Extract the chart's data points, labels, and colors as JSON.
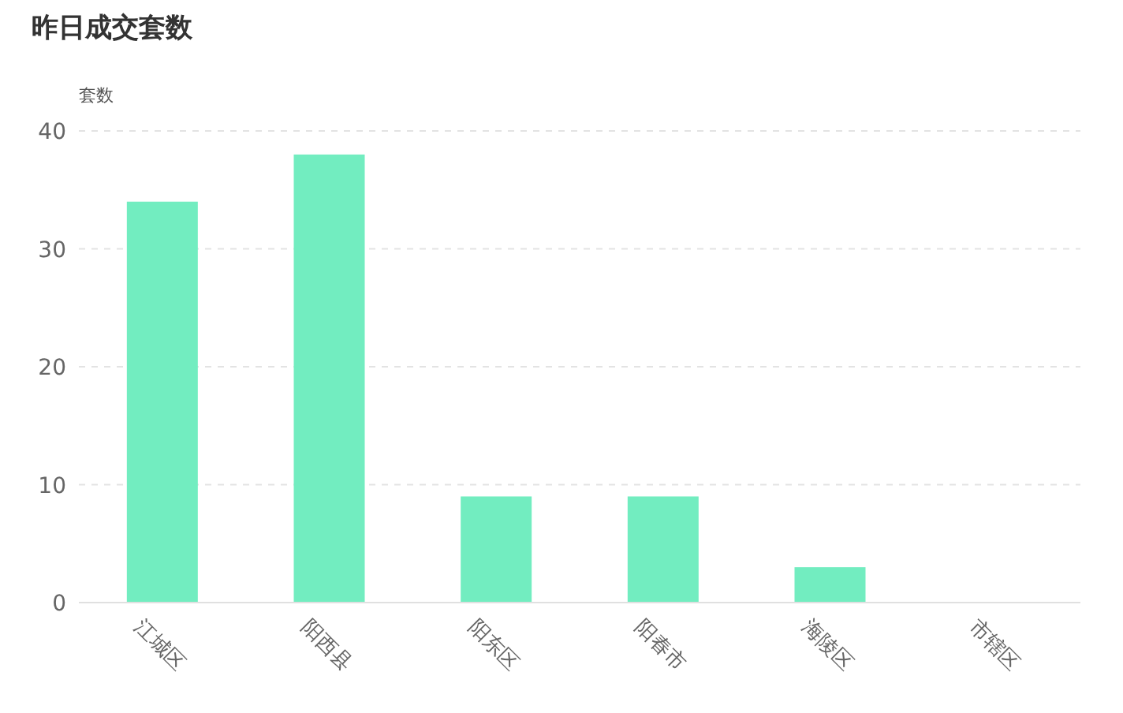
{
  "chart_data": {
    "type": "bar",
    "title": "昨日成交套数",
    "ylabel": "套数",
    "categories": [
      "江城区",
      "阳西县",
      "阳东区",
      "阳春市",
      "海陵区",
      "市辖区"
    ],
    "values": [
      34,
      38,
      9,
      9,
      3,
      0
    ],
    "color": "#72edc0",
    "ylim": [
      0,
      40
    ],
    "yticks": [
      0,
      10,
      20,
      30,
      40
    ],
    "grid": "y"
  }
}
